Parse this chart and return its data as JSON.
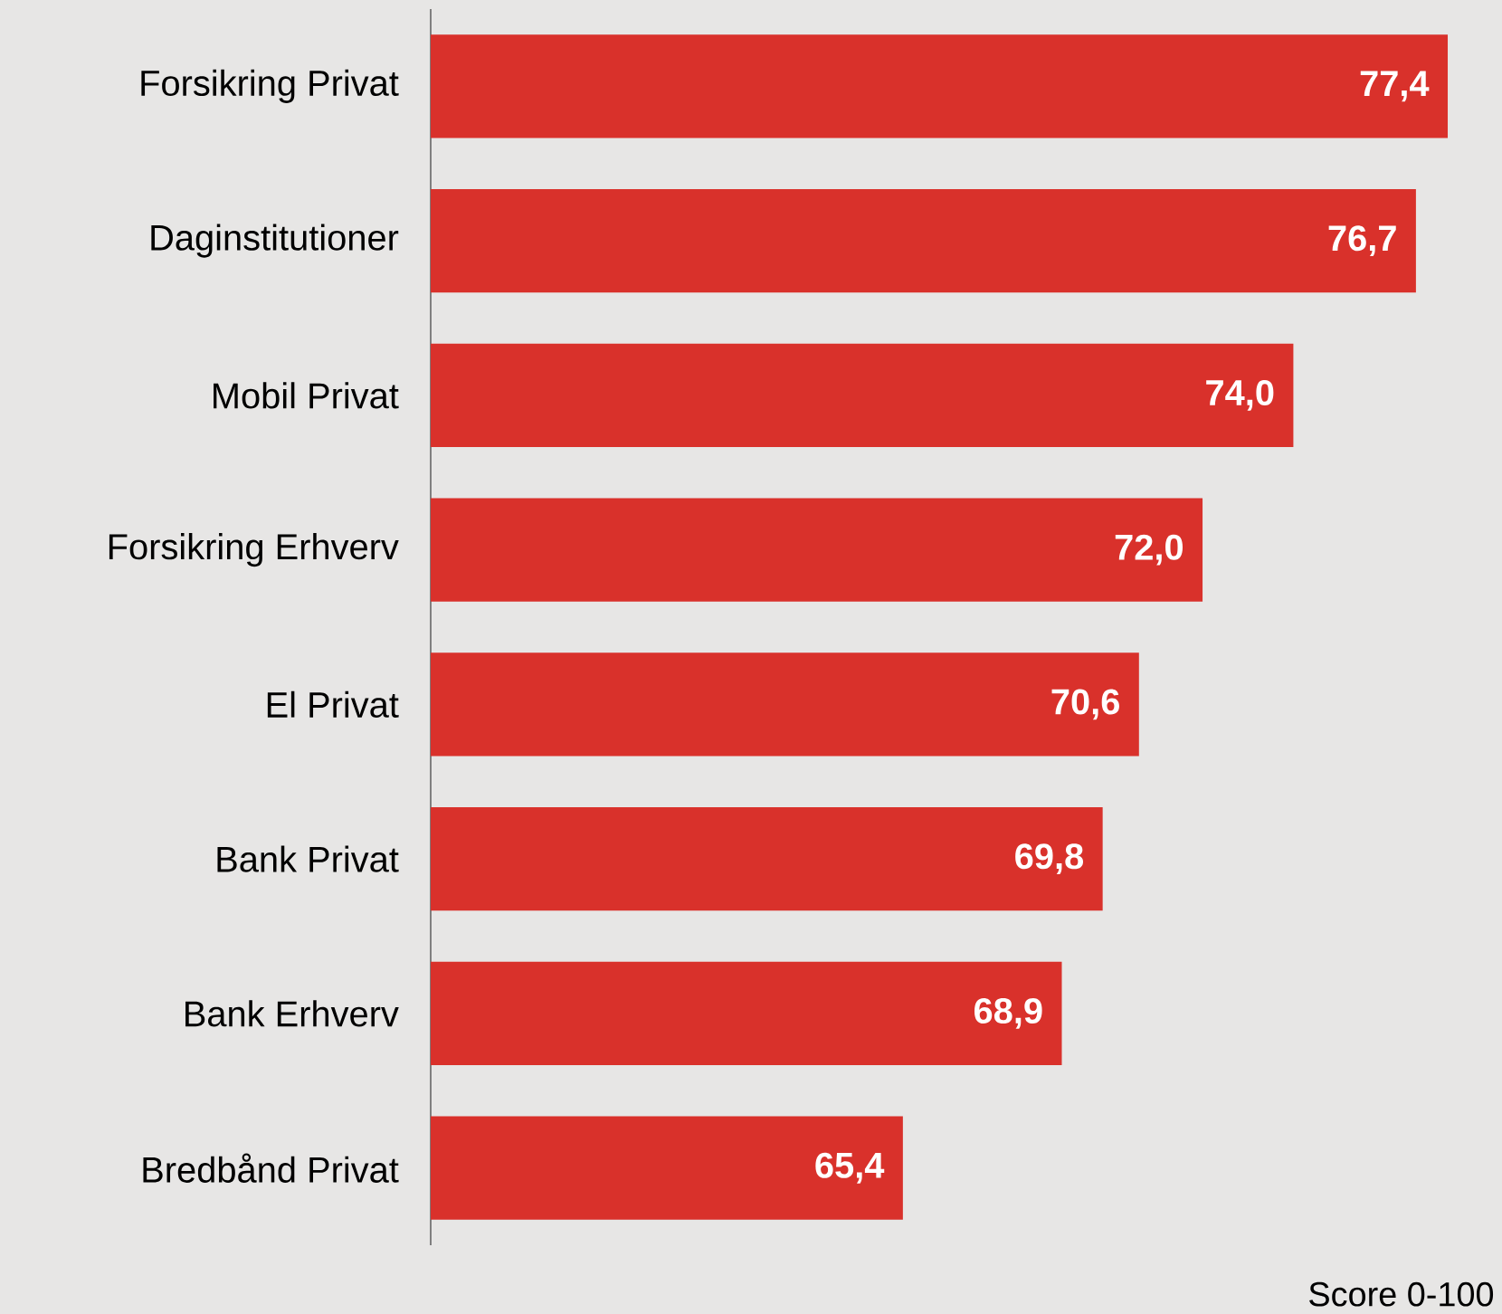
{
  "chart_data": {
    "type": "bar",
    "orientation": "horizontal",
    "categories": [
      "Forsikring Privat",
      "Daginstitutioner",
      "Mobil Privat",
      "Forsikring Erhverv",
      "El Privat",
      "Bank Privat",
      "Bank Erhverv",
      "Bredbånd Privat"
    ],
    "values": [
      77.4,
      76.7,
      74.0,
      72.0,
      70.6,
      69.8,
      68.9,
      65.4
    ],
    "value_labels": [
      "77,4",
      "76,7",
      "74,0",
      "72,0",
      "70,6",
      "69,8",
      "68,9",
      "65,4"
    ],
    "color": "#d9312b",
    "xlim": [
      55,
      77.4
    ],
    "annotations": [
      "Score 0-100"
    ]
  }
}
